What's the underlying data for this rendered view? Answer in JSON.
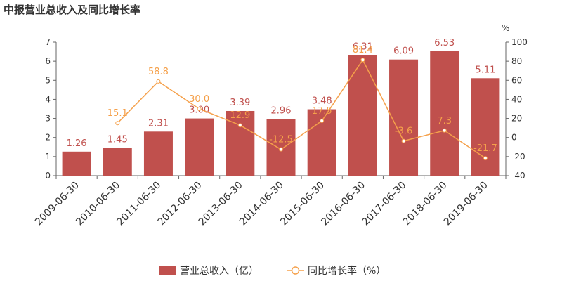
{
  "chart_data": {
    "type": "bar",
    "title": "中报营业总收入及同比增长率",
    "categories": [
      "2009-06-30",
      "2010-06-30",
      "2011-06-30",
      "2012-06-30",
      "2013-06-30",
      "2014-06-30",
      "2015-06-30",
      "2016-06-30",
      "2017-06-30",
      "2018-06-30",
      "2019-06-30"
    ],
    "series": [
      {
        "name": "营业总收入（亿）",
        "type": "bar",
        "axis": "left",
        "color": "#c0504d",
        "values": [
          1.26,
          1.45,
          2.31,
          3.0,
          3.39,
          2.96,
          3.48,
          6.31,
          6.09,
          6.53,
          5.11
        ],
        "labels": [
          "1.26",
          "1.45",
          "2.31",
          "3.00",
          "3.39",
          "2.96",
          "3.48",
          "6.31",
          "6.09",
          "6.53",
          "5.11"
        ]
      },
      {
        "name": "同比增长率（%）",
        "type": "line",
        "axis": "right",
        "color": "#f5a04a",
        "values": [
          null,
          15.1,
          58.8,
          30.0,
          12.9,
          -12.5,
          17.5,
          81.4,
          -3.6,
          7.3,
          -21.7
        ],
        "labels": [
          null,
          "15.1",
          "58.8",
          "30.0",
          "12.9",
          "-12.5",
          "17.5",
          "81.4",
          "-3.6",
          "7.3",
          "-21.7"
        ]
      }
    ],
    "y_left": {
      "min": 0,
      "max": 7,
      "ticks": [
        "0",
        "1",
        "2",
        "3",
        "4",
        "5",
        "6",
        "7"
      ]
    },
    "y_right": {
      "min": -40,
      "max": 100,
      "ticks": [
        "-40",
        "-20",
        "0",
        "20",
        "40",
        "60",
        "80",
        "100"
      ],
      "unit": "%"
    },
    "legend_position": "bottom",
    "grid": false
  }
}
